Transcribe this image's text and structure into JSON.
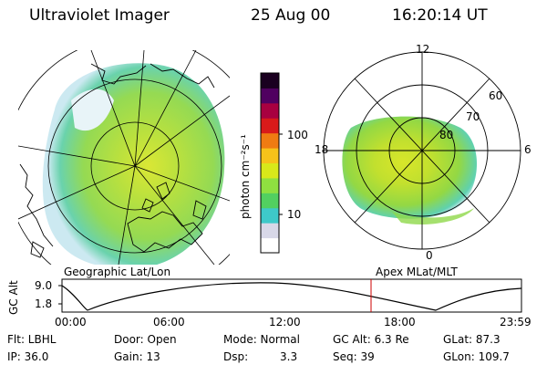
{
  "header": {
    "instrument": "Ultraviolet Imager",
    "date": "25 Aug 00",
    "time": "16:20:14 UT"
  },
  "colorbar": {
    "unit_label": "photon cm⁻²s⁻¹",
    "ticks": [
      "100",
      "10"
    ]
  },
  "geo_panel": {
    "label": "Geographic Lat/Lon"
  },
  "apex_panel": {
    "label": "Apex MLat/MLT",
    "mlt_labels": {
      "top": "12",
      "left": "18",
      "right": "6",
      "bottom": "0"
    },
    "lat_labels": [
      "60",
      "70",
      "80"
    ]
  },
  "altitude_plot": {
    "ylabel": "GC Alt",
    "ytick_top": "9.0",
    "ytick_bottom": "1.8",
    "xticks": [
      "00:00",
      "06:00",
      "12:00",
      "18:00",
      "23:59"
    ],
    "current_time_marker": "16:20"
  },
  "info": {
    "row1": [
      {
        "key": "flt",
        "text": "Flt: LBHL"
      },
      {
        "key": "door",
        "text": "Door: Open"
      },
      {
        "key": "mode",
        "text": "Mode: Normal"
      },
      {
        "key": "gcalt",
        "text": "GC Alt: 6.3 Re"
      },
      {
        "key": "glat",
        "text": "GLat:  87.3"
      }
    ],
    "row2": [
      {
        "key": "ip",
        "text": "IP: 36.0"
      },
      {
        "key": "gain",
        "text": "Gain: 13"
      },
      {
        "key": "dsp_label",
        "text": "Dsp:"
      },
      {
        "key": "dsp_val",
        "text": "3.3"
      },
      {
        "key": "seq",
        "text": "Seq: 39"
      },
      {
        "key": "glon",
        "text": "GLon: 109.7"
      }
    ]
  },
  "colors": {
    "colorbar_stops": [
      "#ffffff",
      "#d8d8e8",
      "#3ec9c9",
      "#52d060",
      "#8fe040",
      "#d8e81a",
      "#f6c21a",
      "#ef7b12",
      "#d81a1a",
      "#a80040",
      "#500060",
      "#1a0020"
    ],
    "aurora_main": "#a6dd3e",
    "aurora_bright": "#d8e62a",
    "aurora_edge": "#5fd1b0",
    "time_marker": "#cc0000"
  }
}
